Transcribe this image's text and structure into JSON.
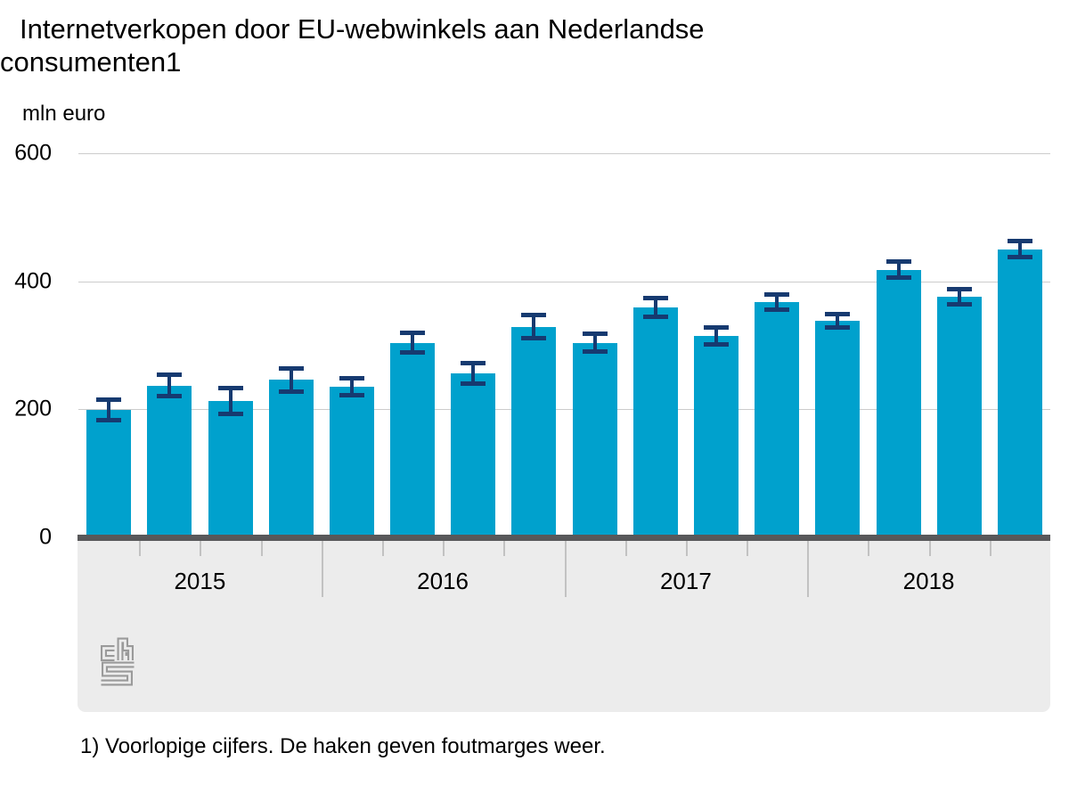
{
  "header": {
    "title_line1": "Internetverkopen door EU-webwinkels aan Nederlandse",
    "title_line2": "consumenten1",
    "unit_label": "mln euro"
  },
  "footnote": "1) Voorlopige cijfers. De haken geven foutmarges weer.",
  "branding": {
    "logo": "cbs-logo"
  },
  "colors": {
    "bar": "#00a1cd",
    "error_bar": "#163a70",
    "gridline": "#cccccc",
    "baseline": "#58585a",
    "axis_band": "#ececec",
    "tick": "#c2c2c2",
    "logo": "#9a9a9a",
    "text": "#000000"
  },
  "chart_data": {
    "type": "bar",
    "title": "Internetverkopen door EU-webwinkels aan Nederlandse consumenten1",
    "xlabel": "",
    "ylabel": "mln euro",
    "ylim": [
      0,
      600
    ],
    "yticks": [
      0,
      200,
      400,
      600
    ],
    "grid": "horizontal",
    "legend_position": "none",
    "groups": [
      "2015",
      "2016",
      "2017",
      "2018"
    ],
    "x": [
      "2015 Q1",
      "2015 Q2",
      "2015 Q3",
      "2015 Q4",
      "2016 Q1",
      "2016 Q2",
      "2016 Q3",
      "2016 Q4",
      "2017 Q1",
      "2017 Q2",
      "2017 Q3",
      "2017 Q4",
      "2018 Q1",
      "2018 Q2",
      "2018 Q3",
      "2018 Q4"
    ],
    "values": [
      199,
      237,
      213,
      246,
      235,
      304,
      256,
      329,
      304,
      359,
      314,
      367,
      338,
      418,
      376,
      450
    ],
    "error_margins": [
      16,
      17,
      20,
      18,
      13,
      15,
      16,
      18,
      14,
      15,
      13,
      12,
      10,
      13,
      12,
      13
    ],
    "annotation": "De haken geven foutmarges weer."
  }
}
